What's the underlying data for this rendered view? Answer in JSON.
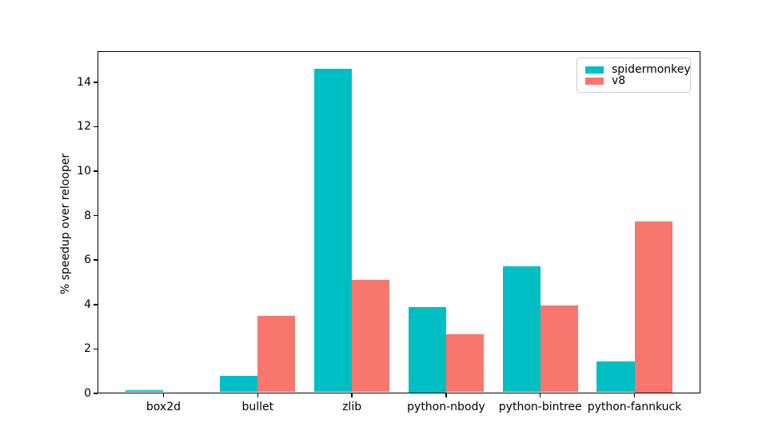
{
  "chart_data": {
    "type": "bar",
    "title": "",
    "xlabel": "",
    "ylabel": "% speedup over relooper",
    "categories": [
      "box2d",
      "bullet",
      "zlib",
      "python-nbody",
      "python-bintree",
      "python-fannkuck"
    ],
    "series": [
      {
        "name": "spidermonkey",
        "color": "#00bfc4",
        "values": [
          0.1,
          0.75,
          14.55,
          3.85,
          5.65,
          1.4
        ]
      },
      {
        "name": "v8",
        "color": "#f8766d",
        "values": [
          0.0,
          3.45,
          5.05,
          2.6,
          3.9,
          7.7
        ]
      }
    ],
    "ylim": [
      0,
      15.4
    ],
    "xlim": [
      -0.7,
      5.7
    ],
    "yticks": [
      0,
      2,
      4,
      6,
      8,
      10,
      12,
      14
    ],
    "bar_width": 0.4,
    "grid": false,
    "legend_position": "upper right",
    "background_color": "#ffffff",
    "spine_color": "#000000"
  }
}
